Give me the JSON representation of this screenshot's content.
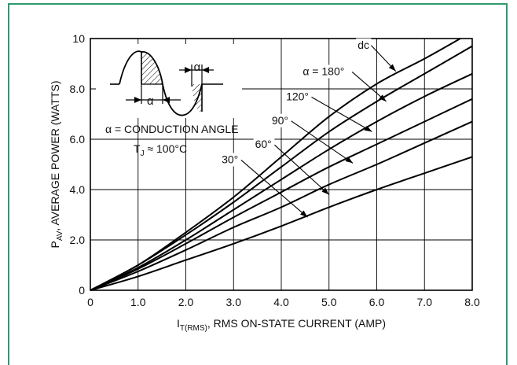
{
  "chart_data": {
    "type": "line",
    "title": "",
    "xlabel_main": "I",
    "xlabel_sub": "T(RMS)",
    "xlabel_rest": ", RMS ON-STATE CURRENT (AMP)",
    "ylabel_main": "P",
    "ylabel_sub": "AV",
    "ylabel_rest": ", AVERAGE POWER (WATTS)",
    "xlim": [
      0,
      8
    ],
    "ylim": [
      0,
      10
    ],
    "x_ticks": [
      "0",
      "1.0",
      "2.0",
      "3.0",
      "4.0",
      "5.0",
      "6.0",
      "7.0",
      "8.0"
    ],
    "x_tick_values": [
      0,
      1,
      2,
      3,
      4,
      5,
      6,
      7,
      8
    ],
    "y_ticks": [
      "0",
      "2.0",
      "4.0",
      "6.0",
      "8.0",
      "10"
    ],
    "y_tick_values": [
      0,
      2,
      4,
      6,
      8,
      10
    ],
    "grid": true,
    "series": [
      {
        "name": "dc",
        "x": [
          0,
          1,
          2,
          3,
          4,
          5,
          6,
          7,
          7.75
        ],
        "y": [
          0,
          1.0,
          2.3,
          3.7,
          5.3,
          6.9,
          8.2,
          9.2,
          10.0
        ]
      },
      {
        "name": "α = 180°",
        "x": [
          0,
          1,
          2,
          3,
          4,
          5,
          6,
          7,
          8
        ],
        "y": [
          0,
          1.0,
          2.2,
          3.5,
          4.9,
          6.3,
          7.5,
          8.6,
          9.7
        ]
      },
      {
        "name": "120°",
        "x": [
          0,
          1,
          2,
          3,
          4,
          5,
          6,
          7,
          8
        ],
        "y": [
          0,
          0.9,
          2.0,
          3.2,
          4.4,
          5.6,
          6.7,
          7.7,
          8.6
        ]
      },
      {
        "name": "90°",
        "x": [
          0,
          1,
          2,
          3,
          4,
          5,
          6,
          7,
          8
        ],
        "y": [
          0,
          0.85,
          1.85,
          2.9,
          3.9,
          4.9,
          5.8,
          6.7,
          7.6
        ]
      },
      {
        "name": "60°",
        "x": [
          0,
          1,
          2,
          3,
          4,
          5,
          6,
          7,
          8
        ],
        "y": [
          0,
          0.75,
          1.6,
          2.5,
          3.3,
          4.2,
          5.0,
          5.85,
          6.7
        ]
      },
      {
        "name": "30°",
        "x": [
          0,
          1,
          2,
          3,
          4,
          5,
          6,
          7,
          8
        ],
        "y": [
          0,
          0.55,
          1.2,
          1.85,
          2.55,
          3.3,
          4.0,
          4.65,
          5.3
        ]
      }
    ],
    "curve_labels": [
      {
        "text": "dc",
        "label_at": [
          5.6,
          9.6
        ],
        "arrow_to": [
          6.4,
          8.7
        ]
      },
      {
        "text": "α = 180°",
        "label_at": [
          4.45,
          8.55
        ],
        "arrow_to": [
          6.2,
          7.5
        ]
      },
      {
        "text": "120°",
        "label_at": [
          4.1,
          7.55
        ],
        "arrow_to": [
          5.9,
          6.3
        ]
      },
      {
        "text": "90°",
        "label_at": [
          3.8,
          6.6
        ],
        "arrow_to": [
          5.5,
          5.05
        ]
      },
      {
        "text": "60°",
        "label_at": [
          3.45,
          5.65
        ],
        "arrow_to": [
          5.0,
          3.8
        ]
      },
      {
        "text": "30°",
        "label_at": [
          2.75,
          5.05
        ],
        "arrow_to": [
          4.55,
          2.9
        ]
      }
    ],
    "annotations": {
      "alpha_symbol": "α",
      "conduction_angle": "α = CONDUCTION ANGLE",
      "tj_main": "T",
      "tj_sub": "J",
      "tj_rest": " ≈ 100°C"
    },
    "line_color": "#000000",
    "grid_color": "#000000"
  }
}
